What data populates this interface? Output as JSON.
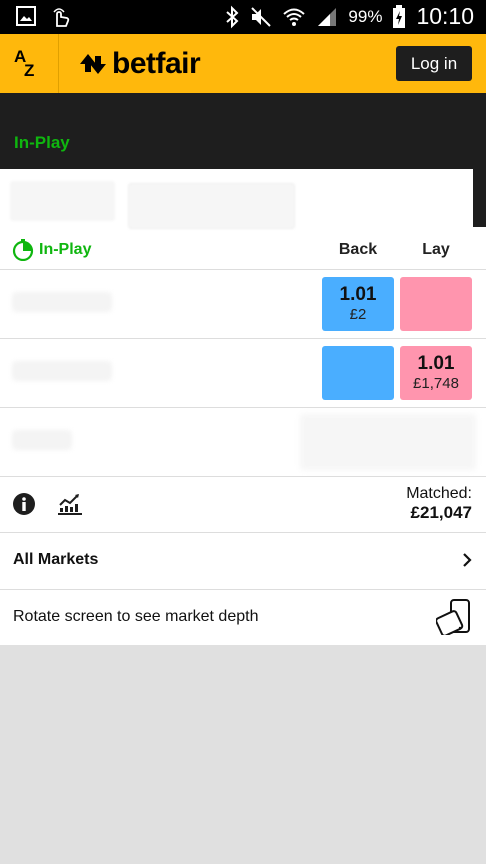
{
  "status_bar": {
    "battery_percent": "99%",
    "time": "10:10",
    "icons": [
      "gallery-icon",
      "hand-touch-icon",
      "bluetooth-icon",
      "mute-icon",
      "wifi-icon",
      "signal-icon",
      "battery-charging-icon"
    ]
  },
  "header": {
    "az_label": "AZ",
    "logo_text": "betfair",
    "login_label": "Log in",
    "brand_color": "#ffb80c"
  },
  "event": {
    "status_label": "In-Play"
  },
  "market": {
    "inplay_label": "In-Play",
    "back_header": "Back",
    "lay_header": "Lay",
    "runners": [
      {
        "back_price": "1.01",
        "back_size": "£2",
        "lay_price": "",
        "lay_size": ""
      },
      {
        "back_price": "",
        "back_size": "",
        "lay_price": "1.01",
        "lay_size": "£1,748"
      }
    ],
    "matched_label": "Matched:",
    "matched_value": "£21,047",
    "back_color": "#4aaeff",
    "lay_color": "#ff95ae",
    "inplay_color": "#0fb60f"
  },
  "links": {
    "all_markets": "All Markets",
    "rotate_hint": "Rotate screen to see market depth"
  }
}
